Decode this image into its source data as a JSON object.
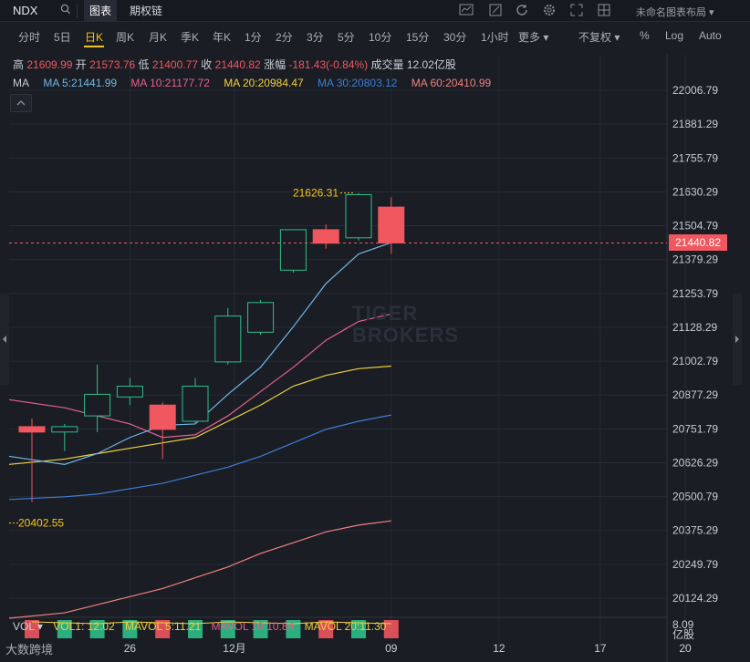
{
  "topbar": {
    "ticker": "NDX",
    "tabs": [
      {
        "label": "图表"
      },
      {
        "label": "期权链"
      }
    ],
    "layout_name": "未命名图表布局 ▾"
  },
  "intervals": [
    "分时",
    "5日",
    "日K",
    "周K",
    "月K",
    "季K",
    "年K",
    "1分",
    "2分",
    "3分",
    "5分",
    "10分",
    "15分",
    "30分",
    "1小时",
    "更多 ▾",
    "不复权 ▾",
    "%",
    "Log",
    "Auto"
  ],
  "active_interval": "日K",
  "stats": {
    "high_label": "高",
    "high": "21609.99",
    "open_label": "开",
    "open": "21573.76",
    "low_label": "低",
    "low": "21400.77",
    "close_label": "收",
    "close": "21440.82",
    "change_label": "涨幅",
    "change": "-181.43(-0.84%)",
    "volume_label": "成交量",
    "volume": "12.02亿股"
  },
  "ma_legend": {
    "title": "MA",
    "items": [
      {
        "label": "MA  5:21441.99",
        "color": "#6fb7e8"
      },
      {
        "label": "MA  10:21177.72",
        "color": "#e8608f"
      },
      {
        "label": "MA  20:20984.47",
        "color": "#f0d040"
      },
      {
        "label": "MA  30:20803.12",
        "color": "#3d7fd6"
      },
      {
        "label": "MA  60:20410.99",
        "color": "#f08080"
      }
    ]
  },
  "chart_data": {
    "type": "candlestick",
    "y_ticks": [
      "22006.79",
      "21881.29",
      "21755.79",
      "21630.29",
      "21504.79",
      "21379.29",
      "21253.79",
      "21128.29",
      "21002.79",
      "20877.29",
      "20751.79",
      "20626.29",
      "20500.79",
      "20375.29",
      "20249.79",
      "20124.29"
    ],
    "ylim": [
      20050,
      22060
    ],
    "x_ticks": [
      "26",
      "12月",
      "09",
      "12",
      "17",
      "20"
    ],
    "x_tick_index": [
      3,
      6.2,
      11,
      14.3,
      17.4,
      20
    ],
    "current_price": "21440.82",
    "high_marker": "21626.31",
    "low_marker": "20402.55",
    "candles": [
      {
        "o": 20760,
        "h": 20790,
        "l": 20480,
        "c": 20740
      },
      {
        "o": 20740,
        "h": 20770,
        "l": 20670,
        "c": 20760
      },
      {
        "o": 20800,
        "h": 20990,
        "l": 20740,
        "c": 20880
      },
      {
        "o": 20870,
        "h": 20940,
        "l": 20840,
        "c": 20910
      },
      {
        "o": 20840,
        "h": 20850,
        "l": 20640,
        "c": 20750
      },
      {
        "o": 20780,
        "h": 20940,
        "l": 20770,
        "c": 20910
      },
      {
        "o": 21000,
        "h": 21200,
        "l": 20990,
        "c": 21170
      },
      {
        "o": 21110,
        "h": 21230,
        "l": 21100,
        "c": 21220
      },
      {
        "o": 21340,
        "h": 21490,
        "l": 21330,
        "c": 21490
      },
      {
        "o": 21490,
        "h": 21510,
        "l": 21420,
        "c": 21440
      },
      {
        "o": 21460,
        "h": 21626.31,
        "l": 21450,
        "c": 21620
      },
      {
        "o": 21573.76,
        "h": 21609.99,
        "l": 21400.77,
        "c": 21440.82
      }
    ],
    "ma5": [
      20650,
      20620,
      20660,
      20720,
      20765,
      20770,
      20880,
      20980,
      21130,
      21290,
      21400,
      21441.99
    ],
    "ma10": [
      20860,
      20830,
      20800,
      20770,
      20720,
      20730,
      20800,
      20890,
      20980,
      21080,
      21150,
      21177.72
    ],
    "ma20": [
      20620,
      20640,
      20660,
      20680,
      20700,
      20720,
      20780,
      20840,
      20910,
      20950,
      20975,
      20984.47
    ],
    "ma30": [
      20490,
      20500,
      20510,
      20530,
      20550,
      20580,
      20610,
      20650,
      20700,
      20750,
      20780,
      20803.12
    ],
    "ma60": [
      20050,
      20070,
      20100,
      20130,
      20160,
      20200,
      20240,
      20290,
      20330,
      20370,
      20395,
      20410.99
    ]
  },
  "volume_legend": {
    "vol": "VOL ▾",
    "vol1": "VOL1: 12.02",
    "mavol5": "MAVOL  5:11.21",
    "mavol10": "MAVOL  10:10.84",
    "mavol20": "MAVOL  20:11.30",
    "scale_value": "8.09",
    "scale_unit": "亿股"
  },
  "watermark": {
    "line1": "TIGER",
    "line2": "BROKERS"
  },
  "source_mark": "大数跨境",
  "colors": {
    "up": "#2ec08a",
    "down": "#f0575f",
    "bg": "#1a1d24",
    "grid": "#262b34",
    "accent": "#f5c518"
  }
}
